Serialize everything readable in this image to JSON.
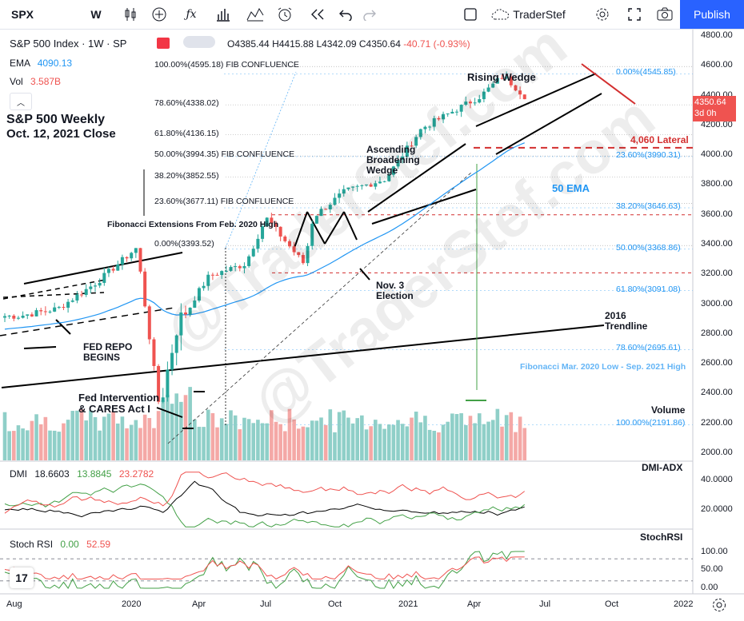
{
  "toolbar": {
    "symbol": "SPX",
    "interval": "W",
    "user_label": "TraderStef",
    "publish_label": "Publish"
  },
  "legend": {
    "instrument": "S&P 500 Index · 1W · SP",
    "ohlc": {
      "o": "O4385.44",
      "h": "H4415.88",
      "l": "L4342.09",
      "c": "C4350.64",
      "change": "-40.71 (-0.93%)"
    },
    "ema_label": "EMA",
    "ema_value": "4090.13",
    "vol_label": "Vol",
    "vol_value": "3.587B"
  },
  "titles": {
    "line1": "S&P 500 Weekly",
    "line2": "Oct. 12, 2021 Close"
  },
  "fib_left": [
    {
      "label": "100.00%(4595.18)",
      "note": "FIB CONFLUENCE"
    },
    {
      "label": "78.60%(4338.02)",
      "note": ""
    },
    {
      "label": "61.80%(4136.15)",
      "note": ""
    },
    {
      "label": "50.00%(3994.35)",
      "note": "FIB CONFLUENCE"
    },
    {
      "label": "38.20%(3852.55)",
      "note": ""
    },
    {
      "label": "23.60%(3677.11)",
      "note": "FIB CONFLUENCE"
    },
    {
      "label": "0.00%(3393.52)",
      "note": ""
    }
  ],
  "fib_right": [
    "0.00%(4545.85)",
    "23.60%(3990.31)",
    "38.20%(3646.63)",
    "50.00%(3368.86)",
    "61.80%(3091.08)",
    "78.60%(2695.61)",
    "100.00%(2191.86)"
  ],
  "annotations": {
    "rising_wedge": "Rising Wedge",
    "ascending": [
      "Ascending",
      "Broadening",
      "Wedge"
    ],
    "lateral": "4,060 Lateral",
    "ema50": "50 EMA",
    "fib_ext_note": "Fibonacci Extensions From Feb. 2020 High",
    "election": [
      "Nov. 3",
      "Election"
    ],
    "trend2016": [
      "2016",
      "Trendline"
    ],
    "fib_mar_note": "Fibonacci Mar. 2020 Low - Sep. 2021 High",
    "repo": [
      "FED REPO",
      "BEGINS"
    ],
    "fed": [
      "Fed Intervention",
      "& CARES Act I"
    ],
    "volume": "Volume",
    "watermark": "@TraderStef.com"
  },
  "price_axis": {
    "ticks": [
      "4800.00",
      "4600.00",
      "4400.00",
      "4200.00",
      "4000.00",
      "3800.00",
      "3600.00",
      "3400.00",
      "3200.00",
      "3000.00",
      "2800.00",
      "2600.00",
      "2400.00",
      "2200.00",
      "2000.00"
    ],
    "last_price": "4350.64",
    "countdown": "3d 0h"
  },
  "time_axis": [
    "Aug",
    "2020",
    "Apr",
    "Jul",
    "Oct",
    "2021",
    "Apr",
    "Jul",
    "Oct",
    "2022"
  ],
  "dmi": {
    "label": "DMI",
    "v1": "18.6603",
    "v2": "13.8845",
    "v3": "23.2782",
    "title": "DMI-ADX",
    "ticks": [
      "40.0000",
      "20.0000"
    ]
  },
  "stoch": {
    "label": "Stoch RSI",
    "v1": "0.00",
    "v2": "52.59",
    "title": "StochRSI",
    "ticks": [
      "100.00",
      "50.00",
      "0.00"
    ]
  },
  "colors": {
    "up": "#26a69a",
    "down": "#ef5350",
    "vol_up": "#8fcfc8",
    "vol_down": "#f4a8a6",
    "ema": "#2196f3",
    "accent": "#2962ff"
  },
  "chart_data": {
    "type": "candlestick",
    "title": "S&P 500 Weekly",
    "subtitle": "Oct. 12, 2021 Close",
    "x_range": [
      "2019-07",
      "2022-01"
    ],
    "y_range": [
      1900,
      4850
    ],
    "y_ticks": [
      2000,
      2200,
      2400,
      2600,
      2800,
      3000,
      3200,
      3400,
      3600,
      3800,
      4000,
      4200,
      4400,
      4600,
      4800
    ],
    "x_labels": [
      "Aug",
      "2020",
      "Apr",
      "Jul",
      "Oct",
      "2021",
      "Apr",
      "Jul",
      "Oct",
      "2022"
    ],
    "last_ohlc": {
      "open": 4385.44,
      "high": 4415.88,
      "low": 4342.09,
      "close": 4350.64,
      "change": -40.71,
      "change_pct": -0.93
    },
    "ema50_last": 4090.13,
    "volume_last": "3.587B",
    "closes_approx": [
      {
        "x": "2019-08",
        "y": 2920
      },
      {
        "x": "2019-10",
        "y": 2970
      },
      {
        "x": "2019-12",
        "y": 3150
      },
      {
        "x": "2020-02-14",
        "y": 3380
      },
      {
        "x": "2020-03-20",
        "y": 2300
      },
      {
        "x": "2020-04-17",
        "y": 2870
      },
      {
        "x": "2020-06-05",
        "y": 3190
      },
      {
        "x": "2020-07-31",
        "y": 3270
      },
      {
        "x": "2020-09-01",
        "y": 3580
      },
      {
        "x": "2020-10-30",
        "y": 3270
      },
      {
        "x": "2020-11-13",
        "y": 3585
      },
      {
        "x": "2021-01-01",
        "y": 3756
      },
      {
        "x": "2021-03-05",
        "y": 3840
      },
      {
        "x": "2021-04-30",
        "y": 4180
      },
      {
        "x": "2021-07-30",
        "y": 4395
      },
      {
        "x": "2021-09-03",
        "y": 4535
      },
      {
        "x": "2021-10-08",
        "y": 4391
      },
      {
        "x": "2021-10-12",
        "y": 4350.64
      }
    ],
    "horizontal_levels": [
      {
        "name": "4,060 Lateral",
        "y": 4060
      },
      {
        "name": "FIB CONFLUENCE",
        "y": 4595.18
      },
      {
        "name": "FIB CONFLUENCE",
        "y": 3994.35
      },
      {
        "name": "FIB CONFLUENCE",
        "y": 3677.11
      }
    ],
    "indicators": {
      "dmi": {
        "plus_di": 18.6603,
        "minus_di": 13.8845,
        "adx": 23.2782,
        "y_ticks": [
          20,
          40
        ]
      },
      "stoch_rsi": {
        "k": 0.0,
        "d": 52.59,
        "y_ticks": [
          0,
          50,
          100
        ]
      }
    }
  }
}
